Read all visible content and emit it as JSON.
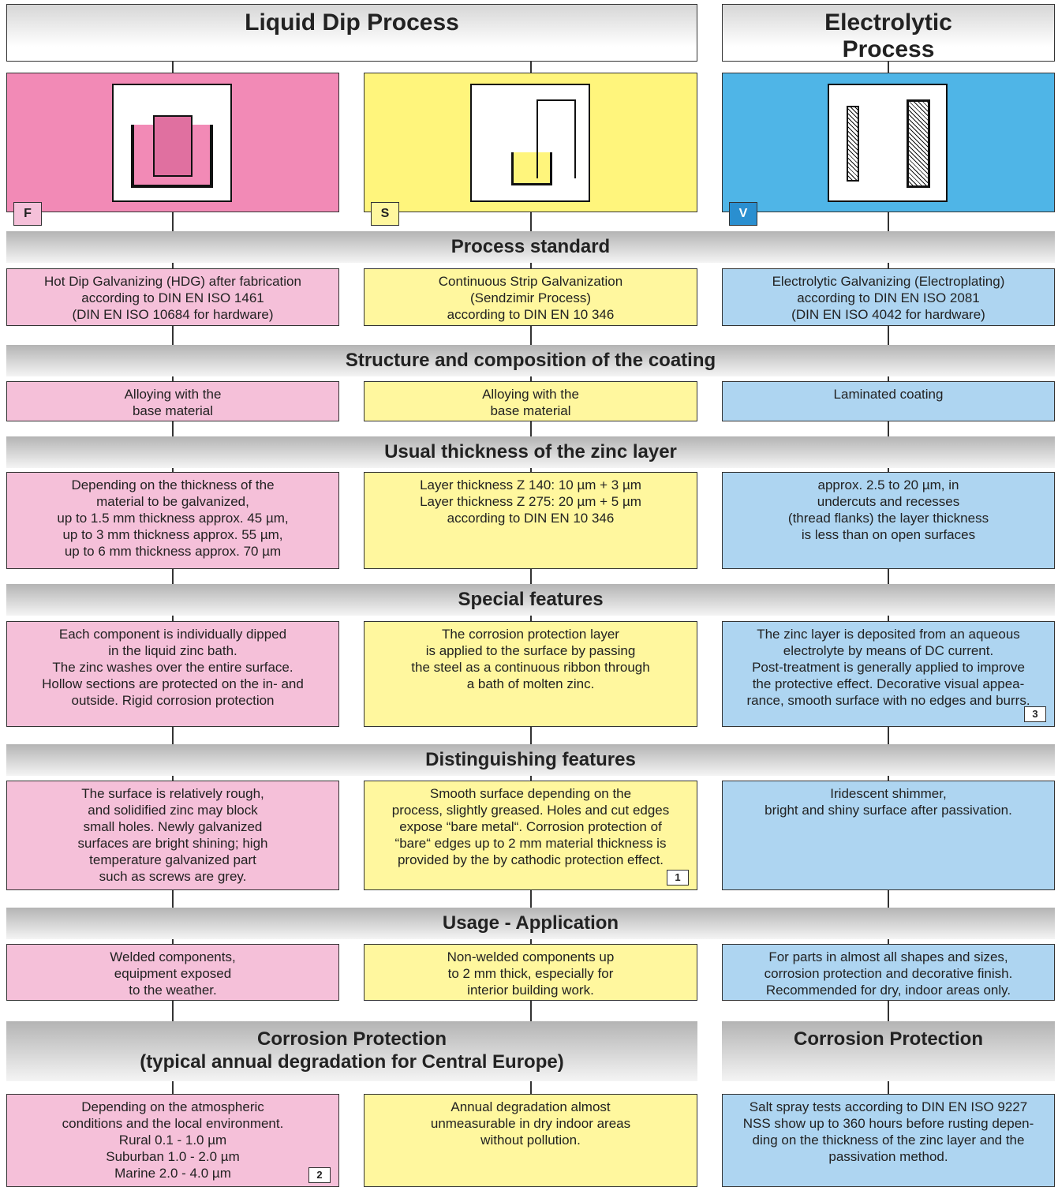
{
  "header": {
    "liquid_dip": "Liquid Dip Process",
    "electrolytic": [
      "Electrolytic",
      "Process"
    ]
  },
  "columns": [
    {
      "letter": "F"
    },
    {
      "letter": "S"
    },
    {
      "letter": "V"
    }
  ],
  "sections": [
    {
      "title": "Process standard",
      "cells": [
        {
          "lines": [
            "Hot Dip Galvanizing (HDG) after fabrication",
            "according to DIN EN ISO 1461",
            "(DIN EN ISO 10684 for hardware)"
          ]
        },
        {
          "lines": [
            "Continuous Strip Galvanization",
            "(Sendzimir Process)",
            "according to DIN EN 10 346"
          ]
        },
        {
          "lines": [
            "Electrolytic Galvanizing (Electroplating)",
            "according to DIN EN ISO 2081",
            "(DIN EN ISO 4042 for hardware)"
          ]
        }
      ]
    },
    {
      "title": "Structure and composition of the coating",
      "cells": [
        {
          "lines": [
            "Alloying with the",
            "base material"
          ]
        },
        {
          "lines": [
            "Alloying with the",
            "base material"
          ]
        },
        {
          "lines": [
            "Laminated coating"
          ]
        }
      ]
    },
    {
      "title": "Usual thickness of the zinc layer",
      "cells": [
        {
          "lines": [
            "Depending on the thickness of the",
            "material to be galvanized,",
            "up to 1.5 mm thickness approx. 45 µm,",
            "up to 3 mm thickness approx. 55 µm,",
            "up to 6 mm thickness approx. 70 µm"
          ]
        },
        {
          "lines": [
            "Layer thickness Z 140: 10 µm + 3 µm",
            "Layer thickness Z 275: 20 µm + 5 µm",
            "according to DIN EN 10 346"
          ]
        },
        {
          "lines": [
            "approx. 2.5 to 20 µm, in",
            "undercuts and recesses",
            "(thread flanks) the layer thickness",
            "is less than on open surfaces"
          ]
        }
      ]
    },
    {
      "title": "Special features",
      "cells": [
        {
          "lines": [
            "Each component is individually dipped",
            "in the liquid zinc bath.",
            "The zinc washes over the entire surface.",
            "Hollow sections are protected on the in- and",
            "outside. Rigid corrosion protection"
          ]
        },
        {
          "lines": [
            "The corrosion protection layer",
            "is applied to the surface by passing",
            "the steel as a continuous ribbon through",
            "a bath of molten zinc."
          ]
        },
        {
          "lines": [
            "The zinc layer is deposited from an aqueous",
            "electrolyte by means of DC current.",
            "Post-treatment is generally applied to improve",
            "the protective effect. Decorative visual appea-",
            "rance, smooth surface with no edges and burrs."
          ],
          "note": "3"
        }
      ]
    },
    {
      "title": "Distinguishing features",
      "cells": [
        {
          "lines": [
            "The surface is relatively rough,",
            "and solidified zinc may block",
            "small holes. Newly galvanized",
            "surfaces are bright shining; high",
            "temperature galvanized part",
            "such as screws are grey."
          ]
        },
        {
          "lines": [
            "Smooth surface depending on the",
            "process, slightly greased. Holes and cut edges",
            "expose “bare metal“. Corrosion protection of",
            "“bare“ edges up to 2 mm material thickness is",
            "provided by the by cathodic protection effect."
          ],
          "note": "1"
        },
        {
          "lines": [
            "Iridescent shimmer,",
            "bright and shiny surface after passivation."
          ]
        }
      ]
    },
    {
      "title": "Usage - Application",
      "cells": [
        {
          "lines": [
            "Welded components,",
            "equipment exposed",
            "to the weather."
          ]
        },
        {
          "lines": [
            "Non-welded components up",
            "to 2 mm thick, especially for",
            "interior building work."
          ]
        },
        {
          "lines": [
            "For parts in almost all shapes and sizes,",
            "corrosion protection and decorative finish.",
            "Recommended for dry, indoor areas only."
          ]
        }
      ]
    },
    {
      "title": [
        "Corrosion Protection",
        "(typical annual degradation for Central Europe)"
      ],
      "title_right": "Corrosion Protection",
      "cells": [
        {
          "lines": [
            "Depending on the atmospheric",
            "conditions and the local environment.",
            "Rural 0.1 - 1.0 µm",
            "Suburban 1.0 - 2.0 µm",
            "Marine 2.0 - 4.0 µm"
          ],
          "note": "2"
        },
        {
          "lines": [
            "Annual degradation almost",
            "unmeasurable in dry indoor areas",
            "without pollution."
          ]
        },
        {
          "lines": [
            "Salt spray tests according to DIN EN ISO 9227",
            "NSS show up to 360 hours before rusting depen-",
            "ding on the thickness of the zinc layer and the",
            "passivation method."
          ]
        }
      ]
    }
  ]
}
